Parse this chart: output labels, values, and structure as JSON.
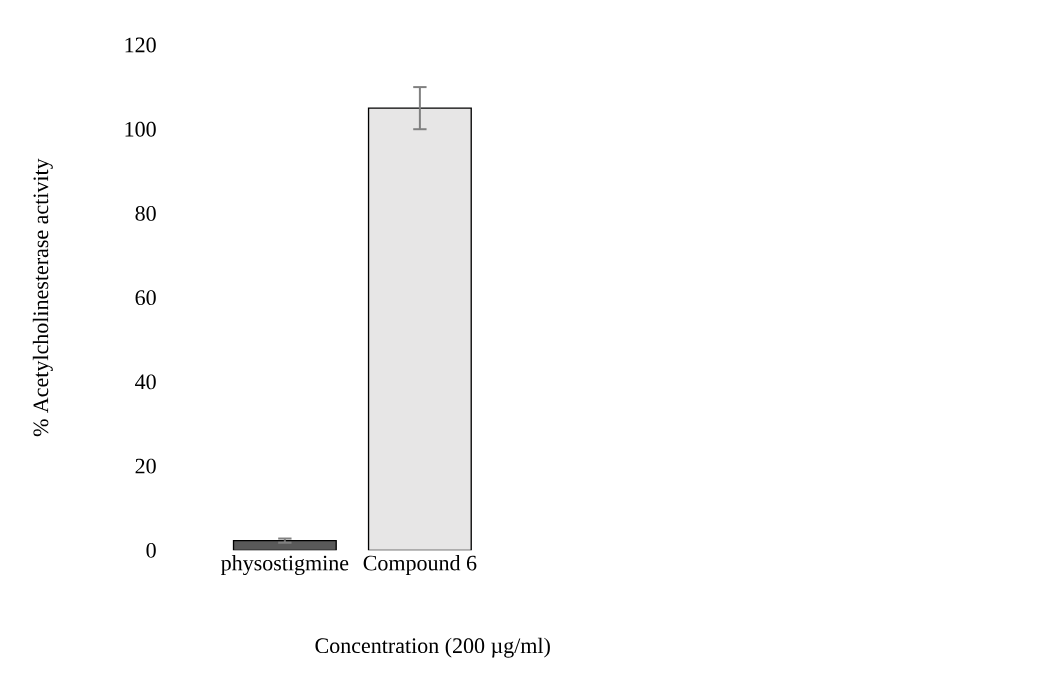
{
  "chart_data": {
    "type": "bar",
    "xlabel": "Concentration (200 µg/ml)",
    "ylabel": "% Acetylcholinesterase activity",
    "categories": [
      "physostigmine",
      "Compound 6"
    ],
    "values": [
      2.3,
      105
    ],
    "colors": [
      "#595959",
      "#e7e6e6"
    ],
    "errors": [
      0.5,
      5
    ],
    "ylim": [
      0,
      120
    ],
    "yticks": [
      0,
      20,
      40,
      60,
      80,
      100,
      120
    ],
    "grid": false
  }
}
